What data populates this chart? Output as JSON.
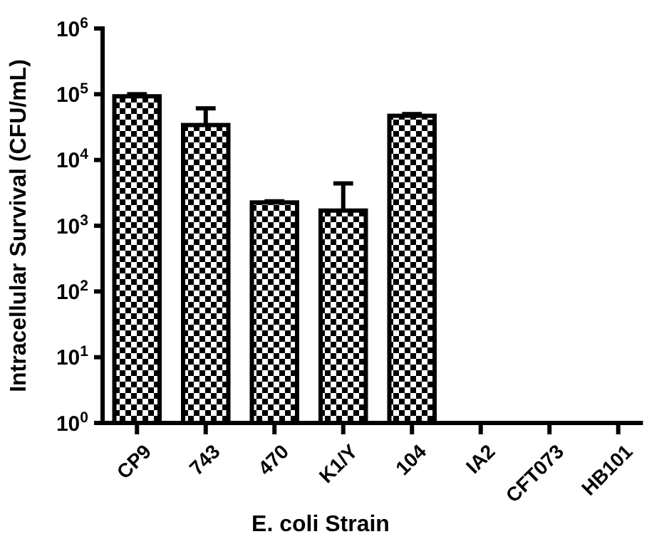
{
  "chart_data": {
    "type": "bar",
    "xlabel": "E. coli Strain",
    "ylabel": "Intracellular Survival (CFU/mL)",
    "categories": [
      "CP9",
      "743",
      "470",
      "K1/Y",
      "104",
      "IA2",
      "CFT073",
      "HB101"
    ],
    "values": [
      93000,
      34000,
      2260,
      1700,
      47000,
      null,
      null,
      null
    ],
    "errors": [
      [
        93000,
        100000
      ],
      [
        34000,
        61000
      ],
      [
        2260,
        2350
      ],
      [
        1700,
        4400
      ],
      [
        47000,
        49900
      ],
      null,
      null,
      null
    ],
    "color": "#000000",
    "log": true,
    "ylim": [
      1,
      1000000
    ],
    "yticks": [
      {
        "value": 1,
        "label": "10$^{0}$"
      },
      {
        "value": 10,
        "label": "10$^{1}$"
      },
      {
        "value": 100,
        "label": "10$^{2}$"
      },
      {
        "value": 1000,
        "label": "10$^{3}$"
      },
      {
        "value": 10000,
        "label": "10$^{4}$"
      },
      {
        "value": 100000,
        "label": "10$^{5}$"
      },
      {
        "value": 1000000,
        "label": "10$^{6}$"
      }
    ],
    "grid": false
  }
}
